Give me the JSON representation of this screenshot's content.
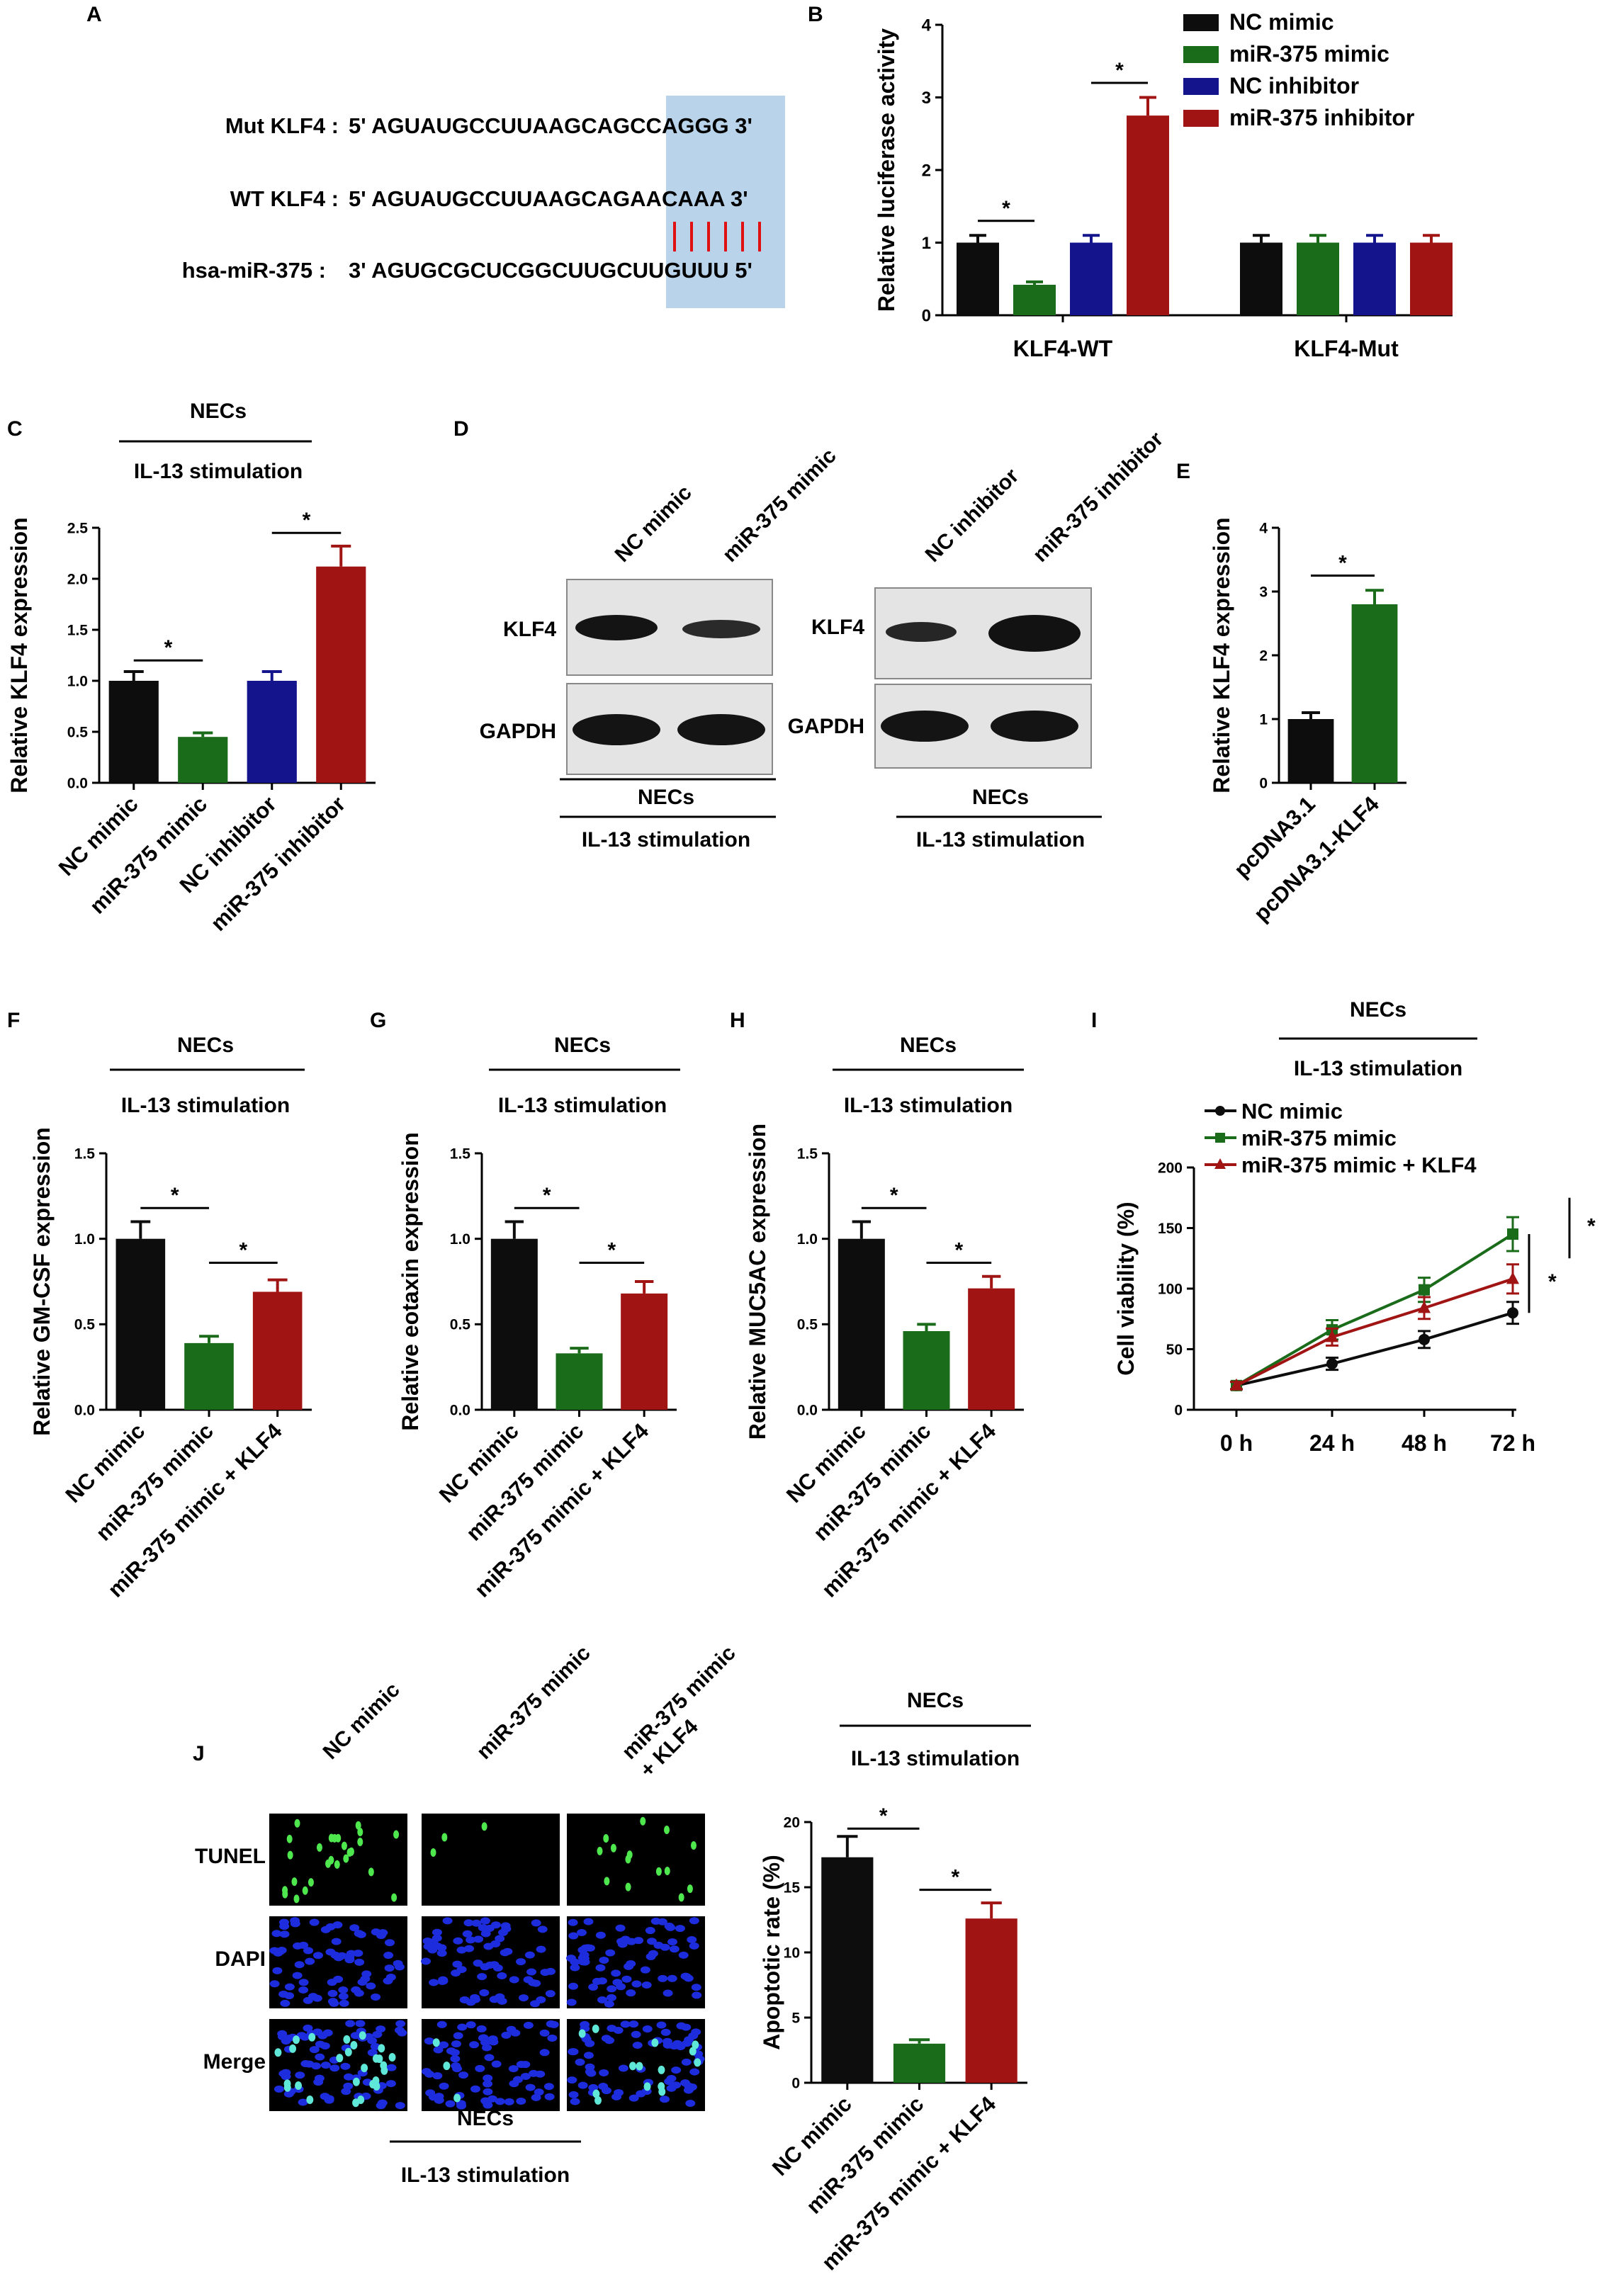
{
  "colors": {
    "black": "#0d0d0d",
    "green": "#1a6b1a",
    "blue": "#14148c",
    "red": "#a01414",
    "highlight": "#b8d3ea",
    "pairing": "#e01010",
    "fluor_green": "#4ee84e",
    "fluor_blue": "#1d2cdc",
    "fluor_cyan": "#5fe8d8"
  },
  "panels": {
    "A": {
      "letter": "A",
      "seq_mut_label": "Mut KLF4 :",
      "seq_mut": "5' AGUAUGCCUUAAGCAGCCAGGG 3'",
      "seq_wt_label": "WT KLF4 :",
      "seq_wt": "5' AGUAUGCCUUAAGCAGAACAAA 3'",
      "seq_mir_label": "hsa-miR-375 :",
      "seq_mir": "3' AGUGCGCUCGGCUUGCUUGUUU 5'"
    },
    "B": {
      "letter": "B"
    },
    "C": {
      "letter": "C",
      "top_label": "NECs",
      "sub_label": "IL-13 stimulation"
    },
    "D": {
      "letter": "D",
      "left_lanes": [
        "NC mimic",
        "miR-375 mimic"
      ],
      "right_lanes": [
        "NC inhibitor",
        "miR-375 inhibitor"
      ],
      "row_klf4": "KLF4",
      "row_gapdh": "GAPDH",
      "bottom_label": "NECs",
      "bottom_sub": "IL-13 stimulation"
    },
    "E": {
      "letter": "E"
    },
    "F": {
      "letter": "F",
      "top_label": "NECs",
      "sub_label": "IL-13 stimulation"
    },
    "G": {
      "letter": "G",
      "top_label": "NECs",
      "sub_label": "IL-13 stimulation"
    },
    "H": {
      "letter": "H",
      "top_label": "NECs",
      "sub_label": "IL-13 stimulation"
    },
    "I": {
      "letter": "I",
      "top_label": "NECs",
      "sub_label": "IL-13 stimulation"
    },
    "J": {
      "letter": "J",
      "columns": [
        "NC mimic",
        "miR-375 mimic",
        "miR-375 mimic\n+ KLF4"
      ],
      "rows": [
        "TUNEL",
        "DAPI",
        "Merge"
      ],
      "bottom_label": "NECs",
      "bottom_sub": "IL-13 stimulation",
      "chart_top_label": "NECs",
      "chart_sub_label": "IL-13 stimulation"
    }
  },
  "chart_data": [
    {
      "id": "B",
      "type": "bar",
      "categories": [
        "KLF4-WT",
        "KLF4-Mut"
      ],
      "series": [
        {
          "name": "NC mimic",
          "color": "#0d0d0d",
          "values": [
            1.0,
            1.0
          ],
          "errors": [
            0.1,
            0.1
          ]
        },
        {
          "name": "miR-375 mimic",
          "color": "#1a6b1a",
          "values": [
            0.42,
            1.0
          ],
          "errors": [
            0.04,
            0.1
          ]
        },
        {
          "name": "NC inhibitor",
          "color": "#14148c",
          "values": [
            1.0,
            1.0
          ],
          "errors": [
            0.1,
            0.1
          ]
        },
        {
          "name": "miR-375 inhibitor",
          "color": "#a01414",
          "values": [
            2.75,
            1.0
          ],
          "errors": [
            0.25,
            0.1
          ]
        }
      ],
      "ylabel": "Relative luciferase activity",
      "ylim": [
        0,
        4
      ],
      "yticks": [
        "0",
        "1",
        "2",
        "3",
        "4"
      ],
      "legend": "top-right",
      "significance": [
        "*",
        "*"
      ]
    },
    {
      "id": "C",
      "type": "bar",
      "categories": [
        "NC mimic",
        "miR-375 mimic",
        "NC inhibitor",
        "miR-375 inhibitor"
      ],
      "values": [
        1.0,
        0.45,
        1.0,
        2.12
      ],
      "errors": [
        0.09,
        0.04,
        0.09,
        0.2
      ],
      "colors": [
        "#0d0d0d",
        "#1a6b1a",
        "#14148c",
        "#a01414"
      ],
      "ylabel": "Relative KLF4 expression",
      "ylim": [
        0,
        2.5
      ],
      "yticks": [
        "0.0",
        "0.5",
        "1.0",
        "1.5",
        "2.0",
        "2.5"
      ],
      "significance": [
        "*",
        "*"
      ]
    },
    {
      "id": "E",
      "type": "bar",
      "categories": [
        "pcDNA3.1",
        "pcDNA3.1-KLF4"
      ],
      "values": [
        1.0,
        2.8
      ],
      "errors": [
        0.1,
        0.22
      ],
      "colors": [
        "#0d0d0d",
        "#1a6b1a"
      ],
      "ylabel": "Relative KLF4 expression",
      "ylim": [
        0,
        4
      ],
      "yticks": [
        "0",
        "1",
        "2",
        "3",
        "4"
      ],
      "significance": [
        "*"
      ]
    },
    {
      "id": "F",
      "type": "bar",
      "categories": [
        "NC mimic",
        "miR-375 mimic",
        "miR-375 mimic + KLF4"
      ],
      "values": [
        1.0,
        0.39,
        0.69
      ],
      "errors": [
        0.1,
        0.04,
        0.07
      ],
      "colors": [
        "#0d0d0d",
        "#1a6b1a",
        "#a01414"
      ],
      "ylabel": "Relative GM-CSF expression",
      "ylim": [
        0,
        1.5
      ],
      "yticks": [
        "0.0",
        "0.5",
        "1.0",
        "1.5"
      ],
      "significance": [
        "*",
        "*"
      ]
    },
    {
      "id": "G",
      "type": "bar",
      "categories": [
        "NC mimic",
        "miR-375 mimic",
        "miR-375 mimic + KLF4"
      ],
      "values": [
        1.0,
        0.33,
        0.68
      ],
      "errors": [
        0.1,
        0.03,
        0.07
      ],
      "colors": [
        "#0d0d0d",
        "#1a6b1a",
        "#a01414"
      ],
      "ylabel": "Relative eotaxin expression",
      "ylim": [
        0,
        1.5
      ],
      "yticks": [
        "0.0",
        "0.5",
        "1.0",
        "1.5"
      ],
      "significance": [
        "*",
        "*"
      ]
    },
    {
      "id": "H",
      "type": "bar",
      "categories": [
        "NC mimic",
        "miR-375 mimic",
        "miR-375 mimic + KLF4"
      ],
      "values": [
        1.0,
        0.46,
        0.71
      ],
      "errors": [
        0.1,
        0.04,
        0.07
      ],
      "colors": [
        "#0d0d0d",
        "#1a6b1a",
        "#a01414"
      ],
      "ylabel": "Relative MUC5AC expression",
      "ylim": [
        0,
        1.5
      ],
      "yticks": [
        "0.0",
        "0.5",
        "1.0",
        "1.5"
      ],
      "significance": [
        "*",
        "*"
      ]
    },
    {
      "id": "I",
      "type": "line",
      "x": [
        "0 h",
        "24 h",
        "48 h",
        "72 h"
      ],
      "series": [
        {
          "name": "NC mimic",
          "color": "#0d0d0d",
          "marker": "circle",
          "values": [
            20,
            38,
            58,
            80
          ],
          "errors": [
            3,
            5,
            7,
            9
          ]
        },
        {
          "name": "miR-375 mimic",
          "color": "#1a6b1a",
          "marker": "square",
          "values": [
            20,
            66,
            99,
            145
          ],
          "errors": [
            3,
            8,
            10,
            14
          ]
        },
        {
          "name": "miR-375 mimic + KLF4",
          "color": "#a01414",
          "marker": "triangle",
          "values": [
            20,
            60,
            84,
            108
          ],
          "errors": [
            3,
            7,
            9,
            12
          ]
        }
      ],
      "ylabel": "Cell viability (%)",
      "ylim": [
        0,
        200
      ],
      "yticks": [
        "0",
        "50",
        "100",
        "150",
        "200"
      ],
      "legend": "top-left",
      "significance": [
        "*",
        "*"
      ]
    },
    {
      "id": "J",
      "type": "bar",
      "categories": [
        "NC mimic",
        "miR-375 mimic",
        "miR-375 mimic + KLF4"
      ],
      "values": [
        17.3,
        3.0,
        12.6
      ],
      "errors": [
        1.6,
        0.3,
        1.2
      ],
      "colors": [
        "#0d0d0d",
        "#1a6b1a",
        "#a01414"
      ],
      "ylabel": "Apoptotic rate (%)",
      "ylim": [
        0,
        20
      ],
      "yticks": [
        "0",
        "5",
        "10",
        "15",
        "20"
      ],
      "significance": [
        "*",
        "*"
      ]
    }
  ]
}
